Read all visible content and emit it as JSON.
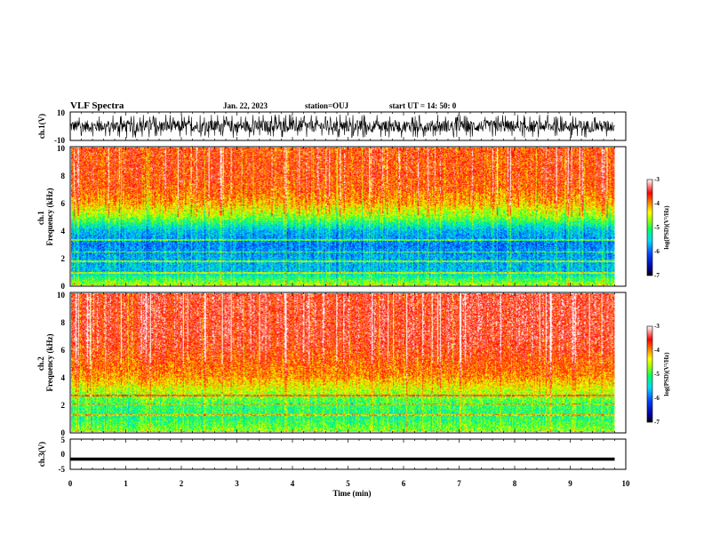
{
  "header": {
    "title": "VLF Spectra",
    "date": "Jan. 22, 2023",
    "station": "station=OUJ",
    "start": "start UT =   14: 50: 0"
  },
  "chart_data": [
    {
      "type": "line",
      "panel": "ch1_waveform",
      "ylabel": "ch.1(V)",
      "ylim": [
        -10,
        10
      ],
      "yticks": [
        10,
        -10
      ],
      "xlim": [
        0,
        10
      ],
      "description_values": "Dense broadband waveform, amplitude approx. between -8 V and 8 V for the whole record (0 to 9.8 min)"
    },
    {
      "type": "heatmap",
      "panel": "ch1_spectrogram",
      "ylabel": "ch.1\nFrequency (kHz)",
      "ylim": [
        0,
        10
      ],
      "yticks": [
        0,
        2,
        4,
        6,
        8,
        10
      ],
      "xlim": [
        0,
        10
      ],
      "data_extent_min": [
        0,
        9.8
      ],
      "colorbar": {
        "label": "log(PSD)(V²/Hz)",
        "range": [
          -7,
          -3
        ],
        "ticks": [
          -3,
          -4,
          -5,
          -6,
          -7
        ]
      },
      "profile_khz": [
        0,
        1,
        2,
        3,
        4,
        5,
        6,
        7,
        8,
        9,
        10
      ],
      "profile_log_psd": [
        -4.6,
        -5.6,
        -5.7,
        -5.9,
        -5.6,
        -4.7,
        -4.1,
        -3.8,
        -3.7,
        -3.7,
        -3.7
      ]
    },
    {
      "type": "heatmap",
      "panel": "ch2_spectrogram",
      "ylabel": "ch.2\nFrequency (kHz)",
      "ylim": [
        0,
        10
      ],
      "yticks": [
        0,
        2,
        4,
        6,
        8,
        10
      ],
      "xlim": [
        0,
        10
      ],
      "data_extent_min": [
        0,
        9.8
      ],
      "colorbar": {
        "label": "log(PSD)(V²/Hz)",
        "range": [
          -7,
          -3
        ],
        "ticks": [
          -3,
          -4,
          -5,
          -6,
          -7
        ]
      },
      "profile_khz": [
        0,
        1,
        2,
        3,
        4,
        5,
        6,
        7,
        8,
        9,
        10
      ],
      "profile_log_psd": [
        -4.7,
        -5.1,
        -5.0,
        -4.5,
        -4.0,
        -3.8,
        -3.6,
        -3.5,
        -3.5,
        -3.5,
        -3.5
      ]
    },
    {
      "type": "line",
      "panel": "ch3_waveform",
      "ylabel": "ch.3(V)",
      "ylim": [
        -5,
        5
      ],
      "yticks": [
        5,
        0,
        -5
      ],
      "xlim": [
        0,
        10
      ],
      "x": [
        0,
        9.8
      ],
      "y": [
        -1.6,
        -1.6
      ]
    }
  ],
  "xaxis": {
    "label": "Time (min)",
    "ticks": [
      0,
      1,
      2,
      3,
      4,
      5,
      6,
      7,
      8,
      9,
      10
    ]
  }
}
